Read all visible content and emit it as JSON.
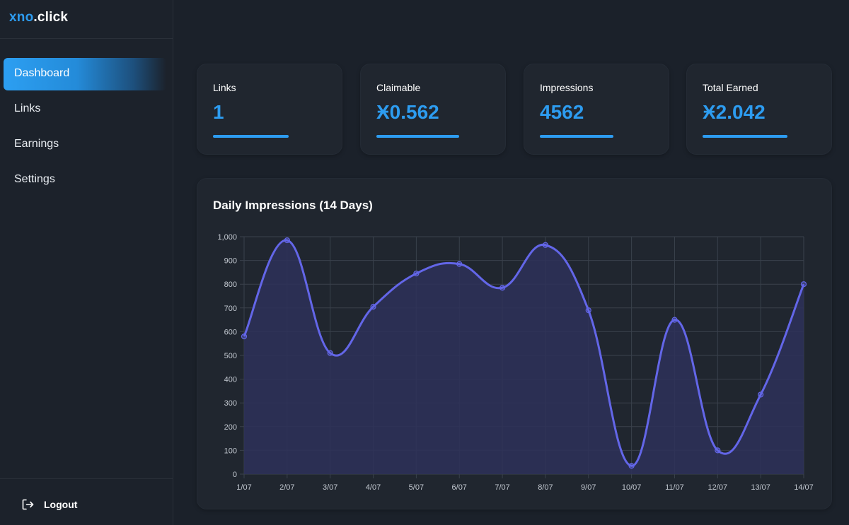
{
  "brand": {
    "accent": "xno",
    "rest": ".click"
  },
  "sidebar": {
    "items": [
      {
        "label": "Dashboard",
        "active": true
      },
      {
        "label": "Links",
        "active": false
      },
      {
        "label": "Earnings",
        "active": false
      },
      {
        "label": "Settings",
        "active": false
      }
    ],
    "logout": {
      "label": "Logout",
      "icon": "logout-icon"
    }
  },
  "stats": [
    {
      "label": "Links",
      "value": "1"
    },
    {
      "label": "Claimable",
      "value": "Ӿ0.562"
    },
    {
      "label": "Impressions",
      "value": "4562"
    },
    {
      "label": "Total Earned",
      "value": "Ӿ2.042"
    }
  ],
  "colors": {
    "accent": "#2d9cf0",
    "background": "#1b212a",
    "card": "#20262f",
    "line": "#6366e8",
    "fill": "#2e3159"
  },
  "chart_data": {
    "type": "area",
    "title": "Daily Impressions (14 Days)",
    "xlabel": "",
    "ylabel": "",
    "categories": [
      "1/07",
      "2/07",
      "3/07",
      "4/07",
      "5/07",
      "6/07",
      "7/07",
      "8/07",
      "9/07",
      "10/07",
      "11/07",
      "12/07",
      "13/07",
      "14/07"
    ],
    "series": [
      {
        "values": [
          580,
          985,
          510,
          705,
          845,
          885,
          785,
          965,
          690,
          35,
          650,
          100,
          335,
          800
        ]
      }
    ],
    "ylim": [
      0,
      1000
    ],
    "yticks": [
      "0",
      "100",
      "200",
      "300",
      "400",
      "500",
      "600",
      "700",
      "800",
      "900",
      "1,000"
    ],
    "grid": true,
    "legend": "none"
  }
}
